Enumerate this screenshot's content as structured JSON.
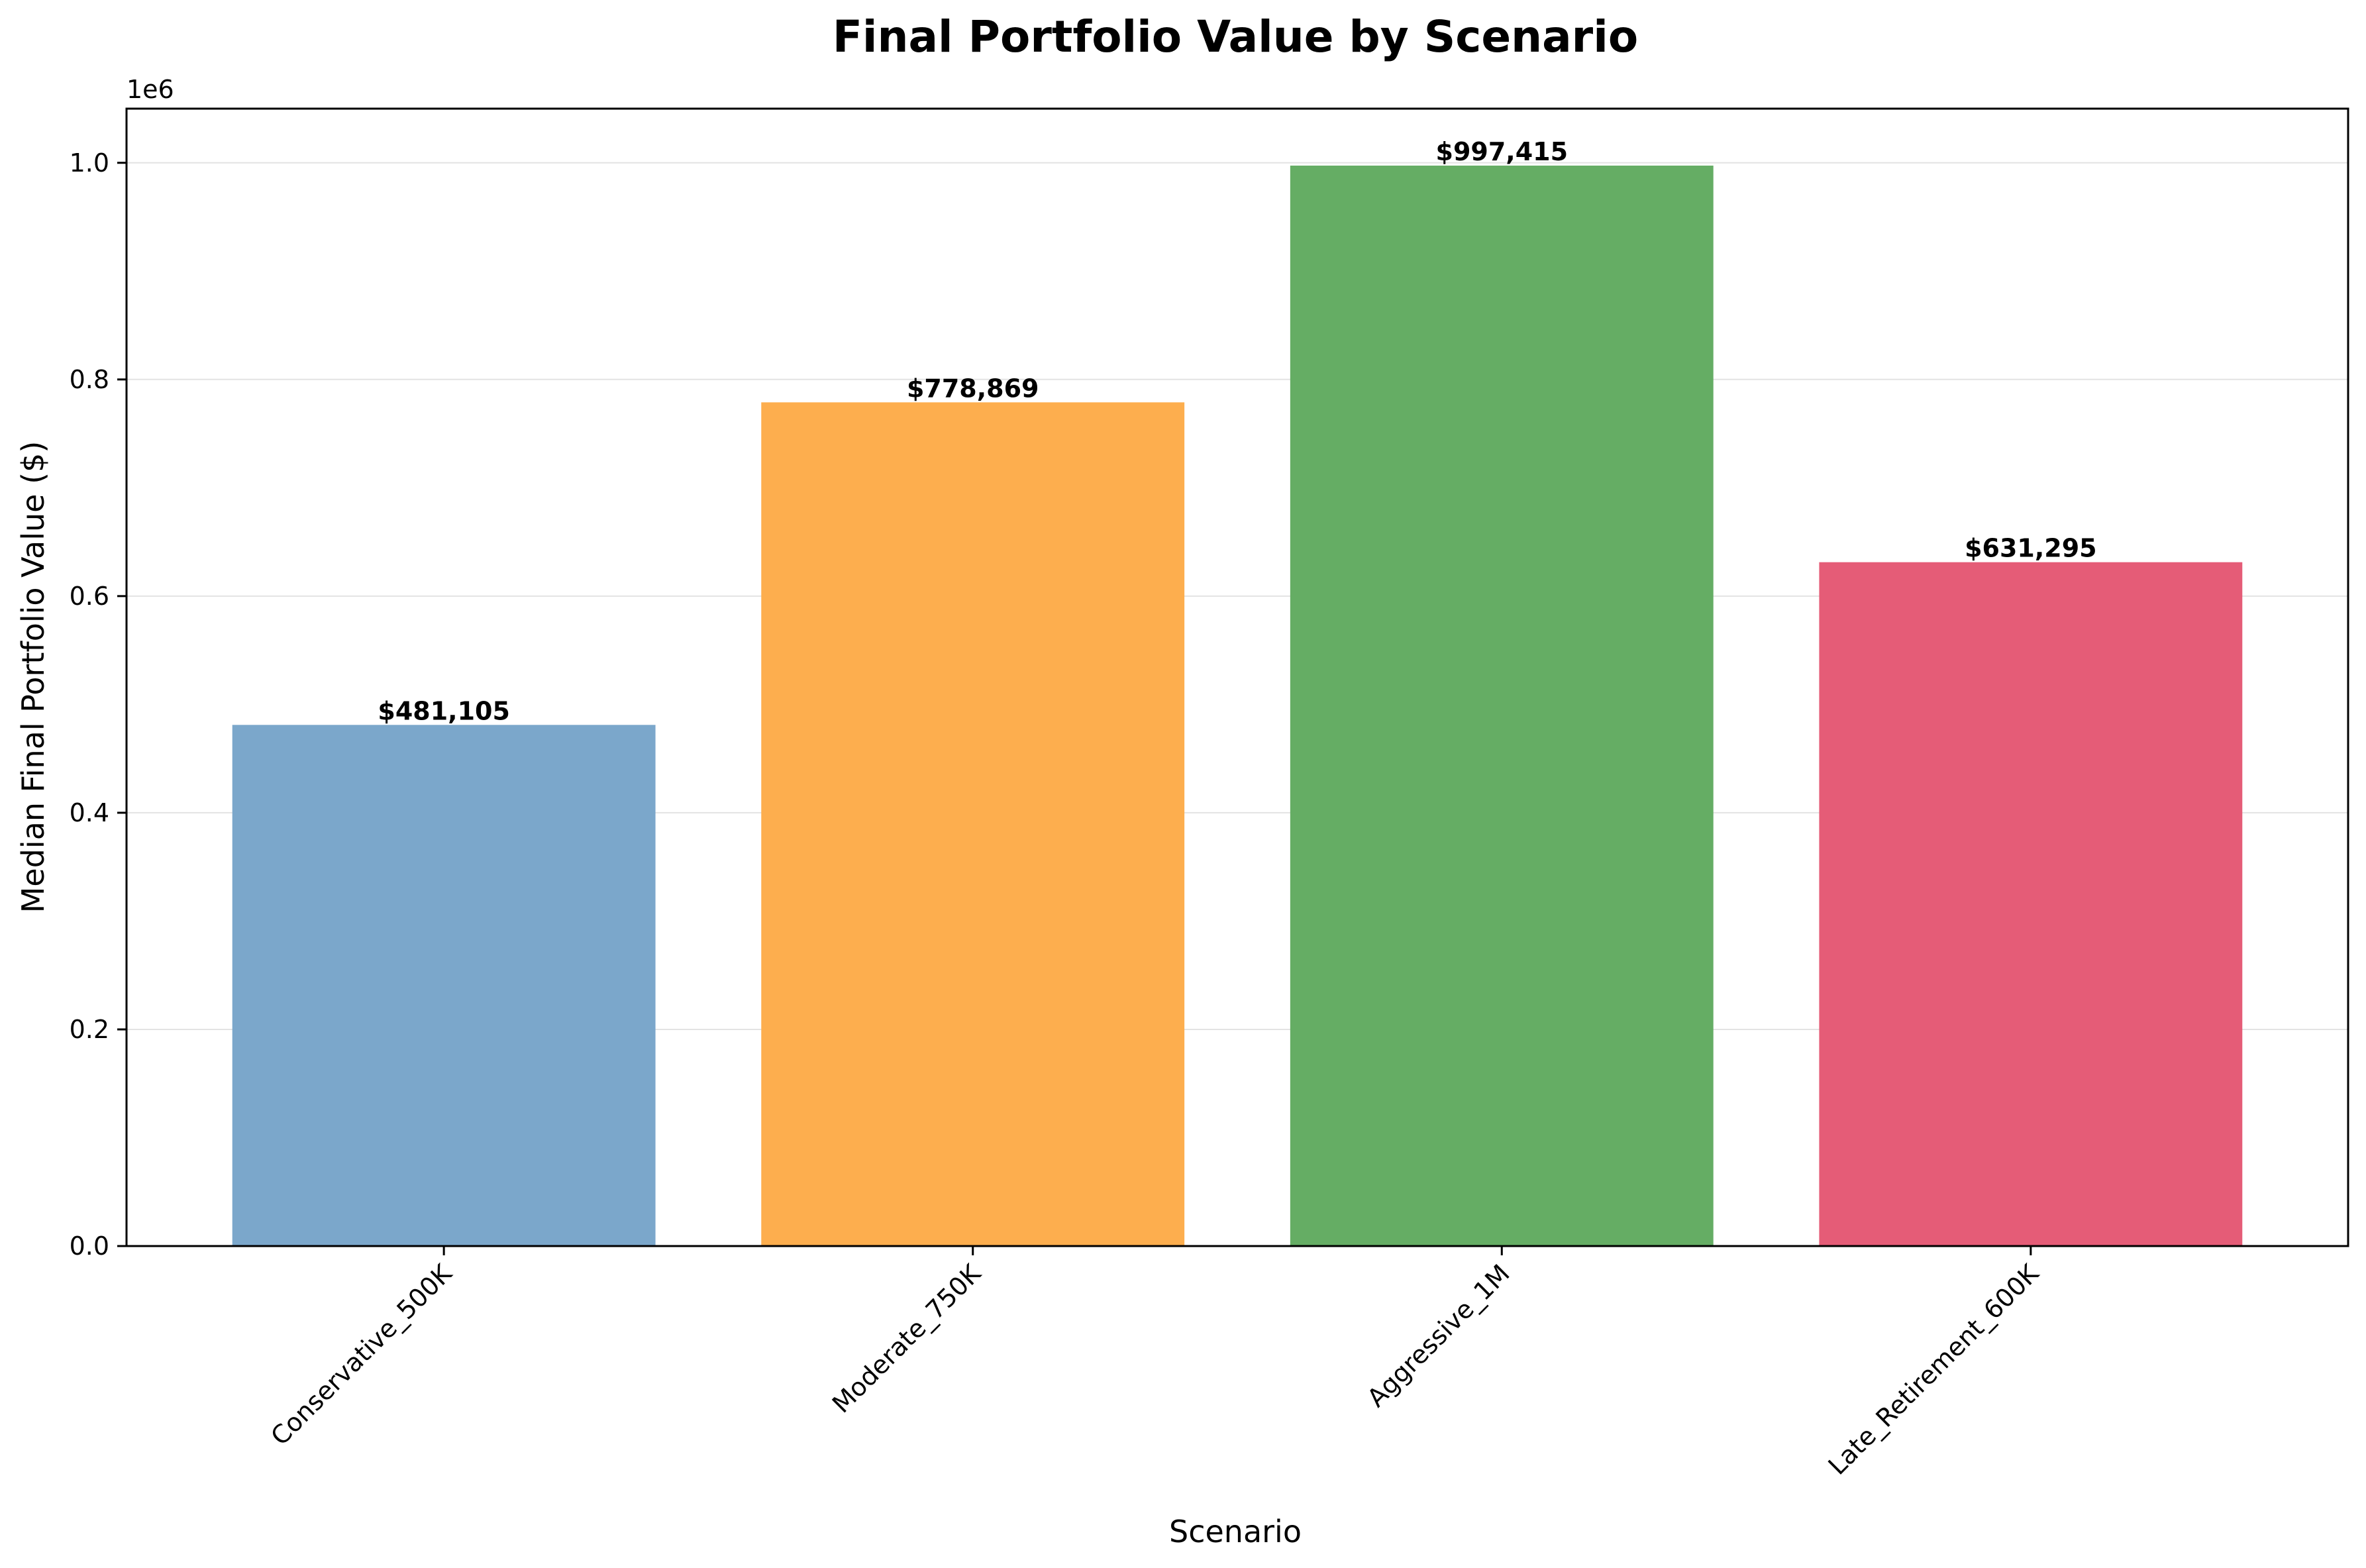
{
  "chart_data": {
    "type": "bar",
    "title": "Final Portfolio Value by Scenario",
    "xlabel": "Scenario",
    "ylabel": "Median Final Portfolio Value ($)",
    "y_offset_label": "1e6",
    "categories": [
      "Conservative_500K",
      "Moderate_750K",
      "Aggressive_1M",
      "Late_Retirement_600K"
    ],
    "values": [
      481105,
      778869,
      997415,
      631295
    ],
    "value_labels": [
      "$481,105",
      "$778,869",
      "$997,415",
      "$631,295"
    ],
    "colors": [
      "#7ba7cb",
      "#fdae4e",
      "#65ad64",
      "#e55c77"
    ],
    "ylim": [
      0,
      1050000
    ],
    "yticks": [
      0,
      200000,
      400000,
      600000,
      800000,
      1000000
    ],
    "ytick_labels": [
      "0.0",
      "0.2",
      "0.4",
      "0.6",
      "0.8",
      "1.0"
    ],
    "grid": "y",
    "legend": "none"
  }
}
